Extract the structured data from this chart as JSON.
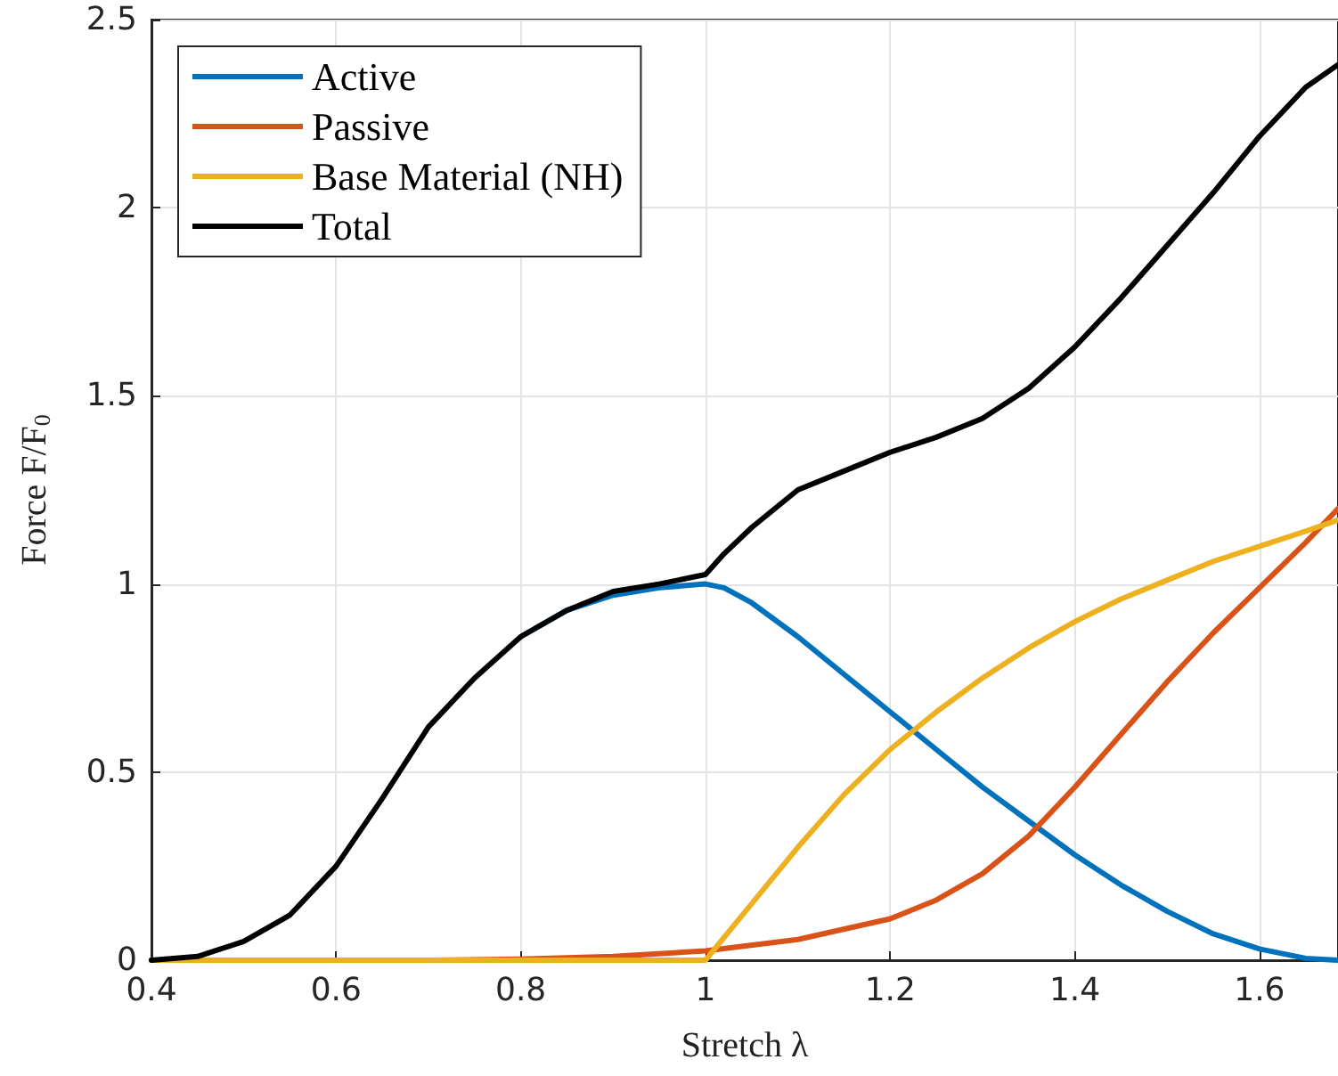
{
  "chart_data": {
    "type": "line",
    "xlabel": "Stretch λ",
    "ylabel": "Force F/F$_{0}$",
    "xlim": [
      0.4,
      1.685
    ],
    "ylim": [
      0,
      2.5
    ],
    "xticks": [
      0.4,
      0.6,
      0.8,
      1,
      1.2,
      1.4,
      1.6
    ],
    "yticks": [
      0,
      0.5,
      1,
      1.5,
      2,
      2.5
    ],
    "grid": true,
    "legend": "top left",
    "marker": "none",
    "line_style": "solid",
    "series": [
      {
        "name": "Active",
        "color": "#0072bd",
        "x": [
          0.8,
          0.85,
          0.9,
          0.95,
          1.0,
          1.02,
          1.05,
          1.1,
          1.15,
          1.2,
          1.25,
          1.3,
          1.35,
          1.4,
          1.45,
          1.5,
          1.55,
          1.6,
          1.65,
          1.685
        ],
        "values": [
          0.86,
          0.93,
          0.97,
          0.99,
          1.0,
          0.99,
          0.95,
          0.86,
          0.76,
          0.66,
          0.56,
          0.46,
          0.37,
          0.28,
          0.2,
          0.13,
          0.07,
          0.03,
          0.005,
          0
        ]
      },
      {
        "name": "Passive",
        "color": "#d95319",
        "x": [
          0.4,
          0.7,
          0.8,
          0.9,
          1.0,
          1.1,
          1.2,
          1.25,
          1.3,
          1.35,
          1.4,
          1.45,
          1.5,
          1.55,
          1.6,
          1.65,
          1.685
        ],
        "values": [
          0,
          0,
          0.003,
          0.01,
          0.025,
          0.055,
          0.11,
          0.16,
          0.23,
          0.33,
          0.46,
          0.6,
          0.74,
          0.87,
          0.99,
          1.11,
          1.2
        ]
      },
      {
        "name": "Base Material (NH)",
        "color": "#edb120",
        "x": [
          0.4,
          1.0,
          1.05,
          1.1,
          1.15,
          1.2,
          1.25,
          1.3,
          1.35,
          1.4,
          1.45,
          1.5,
          1.55,
          1.6,
          1.65,
          1.685
        ],
        "values": [
          0,
          0,
          0.15,
          0.3,
          0.44,
          0.56,
          0.66,
          0.75,
          0.83,
          0.9,
          0.96,
          1.01,
          1.06,
          1.1,
          1.14,
          1.17
        ]
      },
      {
        "name": "Total",
        "color": "#000000",
        "x": [
          0.4,
          0.45,
          0.5,
          0.55,
          0.6,
          0.65,
          0.7,
          0.75,
          0.8,
          0.85,
          0.9,
          0.95,
          1.0,
          1.02,
          1.05,
          1.1,
          1.15,
          1.2,
          1.25,
          1.3,
          1.35,
          1.4,
          1.45,
          1.5,
          1.55,
          1.6,
          1.65,
          1.685
        ],
        "values": [
          0,
          0.01,
          0.05,
          0.12,
          0.25,
          0.43,
          0.62,
          0.75,
          0.86,
          0.93,
          0.98,
          1.0,
          1.025,
          1.08,
          1.15,
          1.25,
          1.3,
          1.35,
          1.39,
          1.44,
          1.52,
          1.63,
          1.76,
          1.9,
          2.04,
          2.19,
          2.32,
          2.38
        ]
      }
    ]
  }
}
